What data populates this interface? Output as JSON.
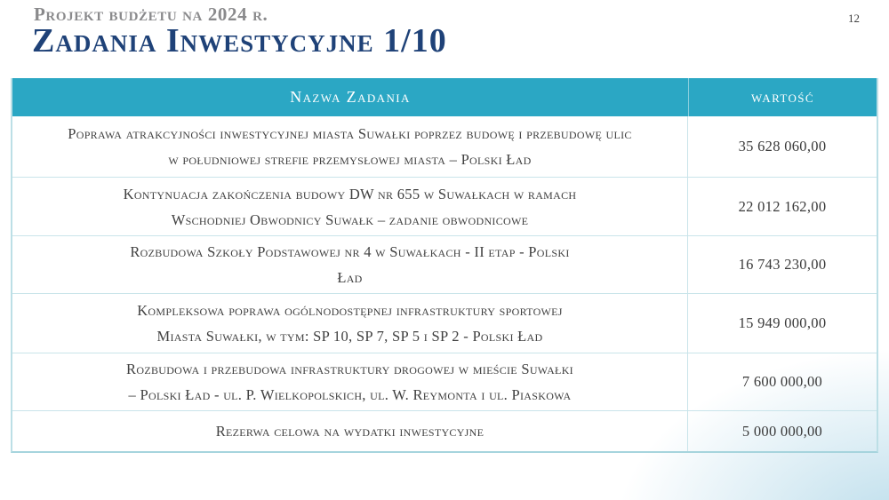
{
  "slide": {
    "eyebrow": "Projekt budżetu na 2024 r.",
    "title": "Zadania Inwestycyjne 1/10",
    "page_number": "12"
  },
  "table": {
    "headers": {
      "name": "Nazwa Zadania",
      "value": "wartość"
    },
    "rows": [
      {
        "name": "Poprawa atrakcyjności inwestycyjnej miasta Suwałki poprzez budowę i przebudowę ulic\nw południowej strefie przemysłowej miasta – Polski Ład",
        "value": "35 628 060,00"
      },
      {
        "name": "Kontynuacja zakończenia budowy DW nr 655 w Suwałkach w ramach\nWschodniej Obwodnicy Suwałk – zadanie obwodnicowe",
        "value": "22 012 162,00"
      },
      {
        "name": "Rozbudowa Szkoły Podstawowej nr 4 w Suwałkach - II etap - Polski\nŁad",
        "value": "16 743 230,00"
      },
      {
        "name": "Kompleksowa poprawa ogólnodostępnej infrastruktury sportowej\nMiasta Suwałki, w tym: SP 10, SP 7, SP 5 i SP 2 - Polski Ład",
        "value": "15 949 000,00"
      },
      {
        "name": "Rozbudowa i przebudowa infrastruktury drogowej w mieście Suwałki\n– Polski Ład - ul. P. Wielkopolskich, ul. W. Reymonta i ul. Piaskowa",
        "value": "7 600 000,00"
      },
      {
        "name": "Rezerwa celowa na  wydatki inwestycyjne",
        "value": "5 000 000,00"
      }
    ]
  },
  "colors": {
    "header_bg": "#2ba7c4",
    "title": "#1f4278",
    "eyebrow": "#8a8a8c",
    "cell_border": "#c9e4ea",
    "outer_border": "#a6d4dd",
    "text": "#404040",
    "corner_glow": "#bfe0ec"
  }
}
